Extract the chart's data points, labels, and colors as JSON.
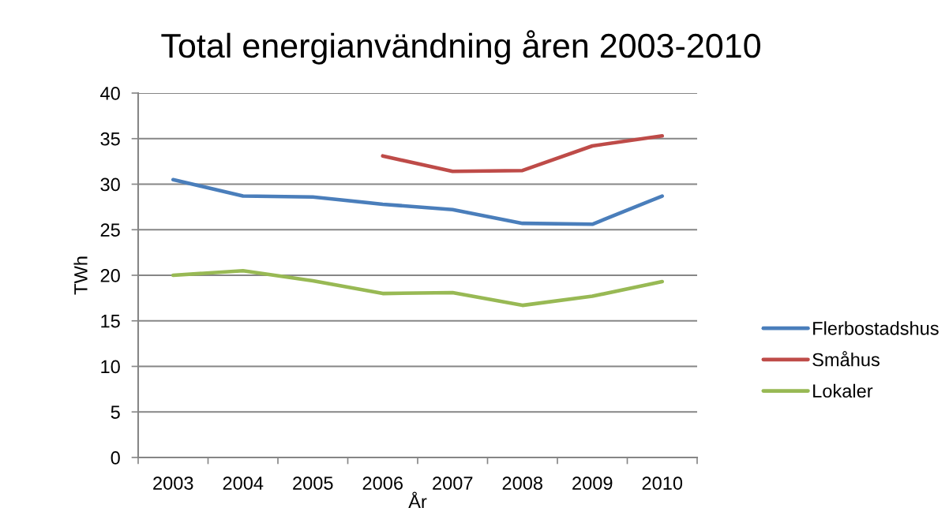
{
  "chart_data": {
    "type": "line",
    "title": "Total energianvändning åren 2003-2010",
    "xlabel": "År",
    "ylabel": "TWh",
    "categories": [
      "2003",
      "2004",
      "2005",
      "2006",
      "2007",
      "2008",
      "2009",
      "2010"
    ],
    "series": [
      {
        "name": "Flerbostadshus",
        "color": "#4a7ebb",
        "values": [
          30.5,
          28.7,
          28.6,
          27.8,
          27.2,
          25.7,
          25.6,
          28.7
        ]
      },
      {
        "name": "Småhus",
        "color": "#be4b48",
        "values": [
          null,
          null,
          null,
          33.1,
          31.4,
          31.5,
          34.2,
          35.3
        ]
      },
      {
        "name": "Lokaler",
        "color": "#98b954",
        "values": [
          20.0,
          20.5,
          19.4,
          18.0,
          18.1,
          16.7,
          17.7,
          19.3
        ]
      }
    ],
    "ylim": [
      0,
      40
    ],
    "yticks": [
      0,
      5,
      10,
      15,
      20,
      25,
      30,
      35,
      40
    ],
    "grid": "y",
    "legend": "right",
    "marker": "none",
    "line_style": "solid"
  }
}
